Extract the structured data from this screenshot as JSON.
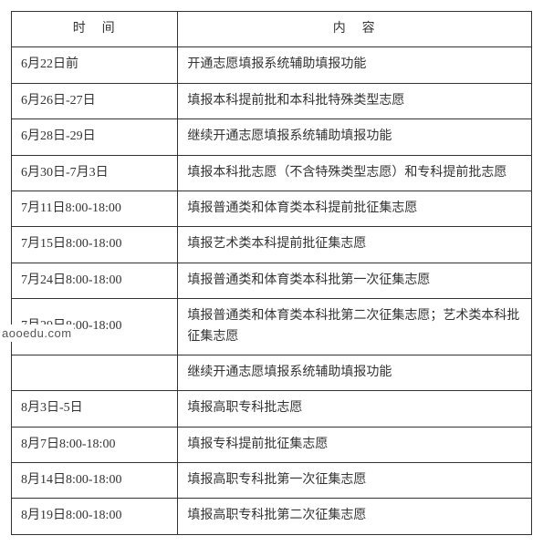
{
  "table": {
    "headers": {
      "time": "时　间",
      "content": "内　容"
    },
    "rows": [
      {
        "time": "6月22日前",
        "content": "开通志愿填报系统辅助填报功能"
      },
      {
        "time": "6月26日-27日",
        "content": "填报本科提前批和本科批特殊类型志愿"
      },
      {
        "time": "6月28日-29日",
        "content": "继续开通志愿填报系统辅助填报功能"
      },
      {
        "time": "6月30日-7月3日",
        "content": "填报本科批志愿（不含特殊类型志愿）和专科提前批志愿"
      },
      {
        "time": "7月11日8:00-18:00",
        "content": "填报普通类和体育类本科提前批征集志愿"
      },
      {
        "time": "7月15日8:00-18:00",
        "content": "填报艺术类本科提前批征集志愿"
      },
      {
        "time": "7月24日8:00-18:00",
        "content": "填报普通类和体育类本科批第一次征集志愿"
      },
      {
        "time": "7月29日8:00-18:00",
        "content": "填报普通类和体育类本科批第二次征集志愿；艺术类本科批征集志愿"
      },
      {
        "time": "",
        "content": "继续开通志愿填报系统辅助填报功能"
      },
      {
        "time": "8月3日-5日",
        "content": "填报高职专科批志愿"
      },
      {
        "time": "8月7日8:00-18:00",
        "content": "填报专科提前批征集志愿"
      },
      {
        "time": "8月14日8:00-18:00",
        "content": "填报高职专科批第一次征集志愿"
      },
      {
        "time": "8月19日8:00-18:00",
        "content": "填报高职专科批第二次征集志愿"
      }
    ]
  },
  "watermark": "aooedu.com",
  "colors": {
    "border": "#333333",
    "text": "#333333",
    "background": "#ffffff"
  }
}
